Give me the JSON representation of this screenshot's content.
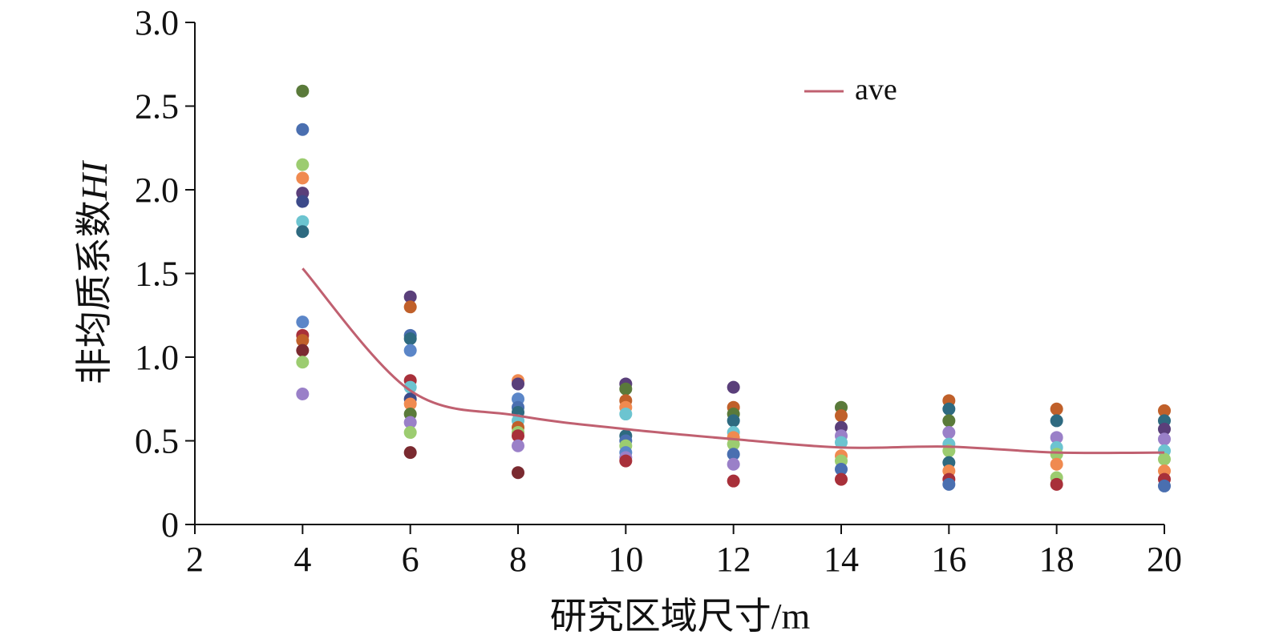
{
  "chart_data": {
    "type": "scatter",
    "xlabel": "研究区域尺寸/m",
    "ylabel": "非均质系数",
    "ylabel_italic": "HI",
    "xlim": [
      2,
      20
    ],
    "ylim": [
      0,
      3.0
    ],
    "x_ticks": [
      "2",
      "4",
      "6",
      "8",
      "10",
      "12",
      "14",
      "16",
      "18",
      "20"
    ],
    "y_ticks": [
      "0",
      "0.5",
      "1.0",
      "1.5",
      "2.0",
      "2.5",
      "3.0"
    ],
    "legend": {
      "position": "top-right",
      "label": "ave",
      "color": "#c06070"
    },
    "ave_line": {
      "x": [
        4,
        6,
        8,
        10,
        12,
        14,
        16,
        18,
        20
      ],
      "y": [
        1.53,
        0.8,
        0.65,
        0.57,
        0.51,
        0.46,
        0.465,
        0.43,
        0.43
      ]
    },
    "scatter_points": [
      {
        "x": 4,
        "y": 2.59,
        "color": "#5a7a3a"
      },
      {
        "x": 4,
        "y": 2.36,
        "color": "#4a6fb0"
      },
      {
        "x": 4,
        "y": 2.15,
        "color": "#9ccc70"
      },
      {
        "x": 4,
        "y": 2.07,
        "color": "#f08a50"
      },
      {
        "x": 4,
        "y": 1.98,
        "color": "#5a3f7a"
      },
      {
        "x": 4,
        "y": 1.93,
        "color": "#3c4a8a"
      },
      {
        "x": 4,
        "y": 1.81,
        "color": "#6cc4d0"
      },
      {
        "x": 4,
        "y": 1.75,
        "color": "#2e6a80"
      },
      {
        "x": 4,
        "y": 1.21,
        "color": "#5b86c8"
      },
      {
        "x": 4,
        "y": 1.13,
        "color": "#a8303a"
      },
      {
        "x": 4,
        "y": 1.1,
        "color": "#c0602a"
      },
      {
        "x": 4,
        "y": 1.04,
        "color": "#7a2a30"
      },
      {
        "x": 4,
        "y": 0.97,
        "color": "#9ccc70"
      },
      {
        "x": 4,
        "y": 0.78,
        "color": "#9a80c8"
      },
      {
        "x": 6,
        "y": 1.36,
        "color": "#5a3f7a"
      },
      {
        "x": 6,
        "y": 1.3,
        "color": "#c0602a"
      },
      {
        "x": 6,
        "y": 1.13,
        "color": "#4a6fb0"
      },
      {
        "x": 6,
        "y": 1.11,
        "color": "#2e6a80"
      },
      {
        "x": 6,
        "y": 1.04,
        "color": "#5b86c8"
      },
      {
        "x": 6,
        "y": 0.86,
        "color": "#a8303a"
      },
      {
        "x": 6,
        "y": 0.82,
        "color": "#6cc4d0"
      },
      {
        "x": 6,
        "y": 0.75,
        "color": "#3c4a8a"
      },
      {
        "x": 6,
        "y": 0.72,
        "color": "#f08a50"
      },
      {
        "x": 6,
        "y": 0.66,
        "color": "#5a7a3a"
      },
      {
        "x": 6,
        "y": 0.61,
        "color": "#9a80c8"
      },
      {
        "x": 6,
        "y": 0.55,
        "color": "#9ccc70"
      },
      {
        "x": 6,
        "y": 0.43,
        "color": "#7a2a30"
      },
      {
        "x": 8,
        "y": 0.86,
        "color": "#f08a50"
      },
      {
        "x": 8,
        "y": 0.84,
        "color": "#5a3f7a"
      },
      {
        "x": 8,
        "y": 0.75,
        "color": "#5b86c8"
      },
      {
        "x": 8,
        "y": 0.7,
        "color": "#4a6fb0"
      },
      {
        "x": 8,
        "y": 0.67,
        "color": "#2e6a80"
      },
      {
        "x": 8,
        "y": 0.62,
        "color": "#6cc4d0"
      },
      {
        "x": 8,
        "y": 0.58,
        "color": "#c0602a"
      },
      {
        "x": 8,
        "y": 0.55,
        "color": "#9ccc70"
      },
      {
        "x": 8,
        "y": 0.53,
        "color": "#a8303a"
      },
      {
        "x": 8,
        "y": 0.47,
        "color": "#9a80c8"
      },
      {
        "x": 8,
        "y": 0.31,
        "color": "#7a2a30"
      },
      {
        "x": 10,
        "y": 0.84,
        "color": "#5a3f7a"
      },
      {
        "x": 10,
        "y": 0.81,
        "color": "#5a7a3a"
      },
      {
        "x": 10,
        "y": 0.74,
        "color": "#c0602a"
      },
      {
        "x": 10,
        "y": 0.7,
        "color": "#f08a50"
      },
      {
        "x": 10,
        "y": 0.66,
        "color": "#6cc4d0"
      },
      {
        "x": 10,
        "y": 0.53,
        "color": "#2e6a80"
      },
      {
        "x": 10,
        "y": 0.5,
        "color": "#4a6fb0"
      },
      {
        "x": 10,
        "y": 0.47,
        "color": "#9ccc70"
      },
      {
        "x": 10,
        "y": 0.43,
        "color": "#5b86c8"
      },
      {
        "x": 10,
        "y": 0.4,
        "color": "#9a80c8"
      },
      {
        "x": 10,
        "y": 0.38,
        "color": "#a8303a"
      },
      {
        "x": 12,
        "y": 0.82,
        "color": "#5a3f7a"
      },
      {
        "x": 12,
        "y": 0.7,
        "color": "#c0602a"
      },
      {
        "x": 12,
        "y": 0.66,
        "color": "#5a7a3a"
      },
      {
        "x": 12,
        "y": 0.62,
        "color": "#2e6a80"
      },
      {
        "x": 12,
        "y": 0.55,
        "color": "#6cc4d0"
      },
      {
        "x": 12,
        "y": 0.52,
        "color": "#f08a50"
      },
      {
        "x": 12,
        "y": 0.48,
        "color": "#9ccc70"
      },
      {
        "x": 12,
        "y": 0.42,
        "color": "#4a6fb0"
      },
      {
        "x": 12,
        "y": 0.36,
        "color": "#9a80c8"
      },
      {
        "x": 12,
        "y": 0.26,
        "color": "#a8303a"
      },
      {
        "x": 14,
        "y": 0.7,
        "color": "#5a7a3a"
      },
      {
        "x": 14,
        "y": 0.65,
        "color": "#c0602a"
      },
      {
        "x": 14,
        "y": 0.58,
        "color": "#5a3f7a"
      },
      {
        "x": 14,
        "y": 0.53,
        "color": "#9a80c8"
      },
      {
        "x": 14,
        "y": 0.49,
        "color": "#6cc4d0"
      },
      {
        "x": 14,
        "y": 0.41,
        "color": "#f08a50"
      },
      {
        "x": 14,
        "y": 0.38,
        "color": "#9ccc70"
      },
      {
        "x": 14,
        "y": 0.33,
        "color": "#4a6fb0"
      },
      {
        "x": 14,
        "y": 0.27,
        "color": "#a8303a"
      },
      {
        "x": 16,
        "y": 0.74,
        "color": "#c0602a"
      },
      {
        "x": 16,
        "y": 0.69,
        "color": "#2e6a80"
      },
      {
        "x": 16,
        "y": 0.62,
        "color": "#5a7a3a"
      },
      {
        "x": 16,
        "y": 0.55,
        "color": "#9a80c8"
      },
      {
        "x": 16,
        "y": 0.48,
        "color": "#6cc4d0"
      },
      {
        "x": 16,
        "y": 0.44,
        "color": "#9ccc70"
      },
      {
        "x": 16,
        "y": 0.37,
        "color": "#2e6a80"
      },
      {
        "x": 16,
        "y": 0.32,
        "color": "#f08a50"
      },
      {
        "x": 16,
        "y": 0.27,
        "color": "#a8303a"
      },
      {
        "x": 16,
        "y": 0.24,
        "color": "#4a6fb0"
      },
      {
        "x": 18,
        "y": 0.69,
        "color": "#c0602a"
      },
      {
        "x": 18,
        "y": 0.62,
        "color": "#2e6a80"
      },
      {
        "x": 18,
        "y": 0.52,
        "color": "#9a80c8"
      },
      {
        "x": 18,
        "y": 0.46,
        "color": "#6cc4d0"
      },
      {
        "x": 18,
        "y": 0.42,
        "color": "#9ccc70"
      },
      {
        "x": 18,
        "y": 0.36,
        "color": "#f08a50"
      },
      {
        "x": 18,
        "y": 0.28,
        "color": "#9ccc70"
      },
      {
        "x": 18,
        "y": 0.24,
        "color": "#a8303a"
      },
      {
        "x": 20,
        "y": 0.68,
        "color": "#c0602a"
      },
      {
        "x": 20,
        "y": 0.62,
        "color": "#2e6a80"
      },
      {
        "x": 20,
        "y": 0.57,
        "color": "#5a3f7a"
      },
      {
        "x": 20,
        "y": 0.51,
        "color": "#9a80c8"
      },
      {
        "x": 20,
        "y": 0.44,
        "color": "#6cc4d0"
      },
      {
        "x": 20,
        "y": 0.39,
        "color": "#9ccc70"
      },
      {
        "x": 20,
        "y": 0.32,
        "color": "#f08a50"
      },
      {
        "x": 20,
        "y": 0.27,
        "color": "#a8303a"
      },
      {
        "x": 20,
        "y": 0.23,
        "color": "#4a6fb0"
      }
    ]
  }
}
